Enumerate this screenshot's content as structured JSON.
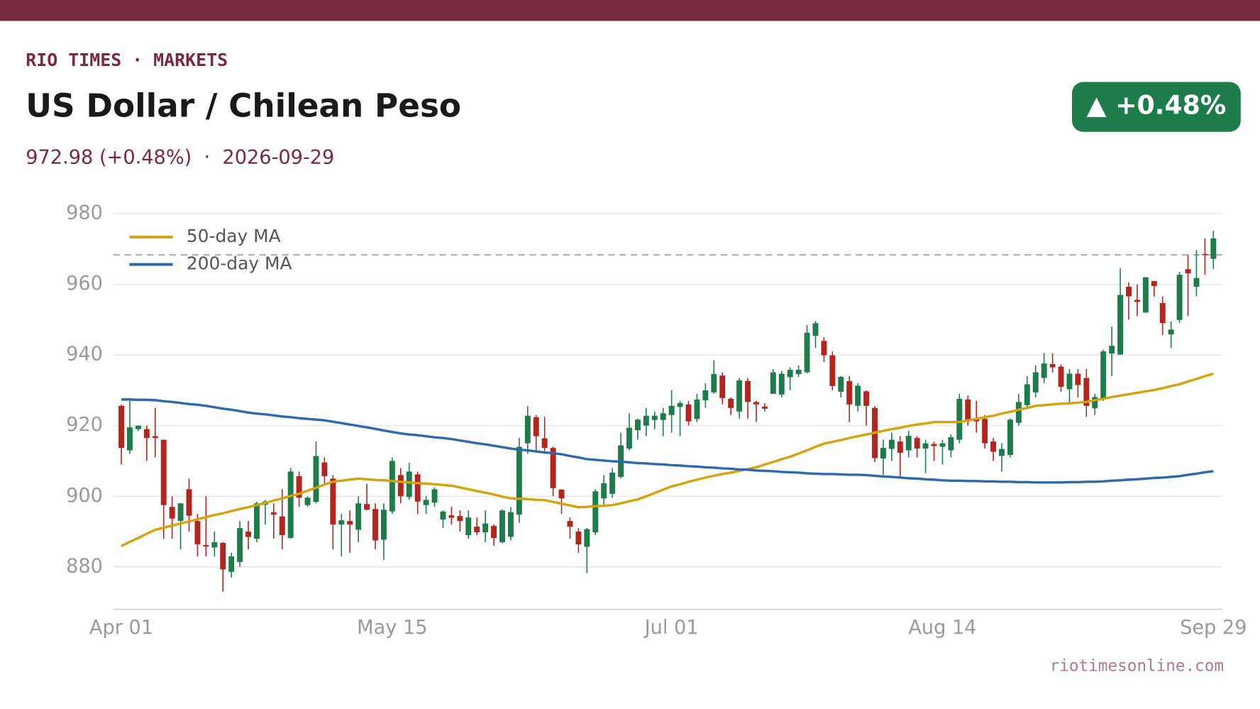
{
  "header": {
    "brand": "RIO TIMES · MARKETS",
    "title": "US Dollar / Chilean Peso",
    "subtitle": "972.98 (+0.48%)  ·  2026-09-29",
    "badge": "▲ +0.48%"
  },
  "footer": "riotimesonline.com",
  "chart_data": {
    "type": "candlestick",
    "categories": [
      "Apr 01",
      null,
      null,
      null,
      null,
      null,
      null,
      null,
      null,
      null,
      null,
      null,
      null,
      null,
      null,
      null,
      null,
      null,
      null,
      null,
      null,
      null,
      null,
      null,
      null,
      null,
      null,
      null,
      null,
      null,
      null,
      null,
      "May 15",
      null,
      null,
      null,
      null,
      null,
      null,
      null,
      null,
      null,
      null,
      null,
      null,
      null,
      null,
      null,
      null,
      null,
      null,
      null,
      null,
      null,
      null,
      null,
      null,
      null,
      null,
      null,
      null,
      null,
      null,
      null,
      null,
      "Jul 01",
      null,
      null,
      null,
      null,
      null,
      null,
      null,
      null,
      null,
      null,
      null,
      null,
      null,
      null,
      null,
      null,
      null,
      null,
      null,
      null,
      null,
      null,
      null,
      null,
      null,
      null,
      null,
      null,
      null,
      null,
      null,
      "Aug 14",
      null,
      null,
      null,
      null,
      null,
      null,
      null,
      null,
      null,
      null,
      null,
      null,
      null,
      null,
      null,
      null,
      null,
      null,
      null,
      null,
      null,
      null,
      null,
      null,
      null,
      null,
      null,
      null,
      null,
      null,
      null,
      "Sep 29"
    ],
    "open": [
      925.6,
      913,
      919,
      919,
      917,
      916,
      897,
      893,
      902,
      893,
      886.2,
      885.5,
      886.8,
      878.6,
      881.4,
      890,
      888,
      897.6,
      895.5,
      894.3,
      888.2,
      905.7,
      897.5,
      898.4,
      909.6,
      905,
      892,
      893,
      890.5,
      897.8,
      896.4,
      887.7,
      895.7,
      906,
      899.8,
      906.2,
      897.5,
      898.2,
      893.4,
      894.6,
      894.4,
      889,
      891.4,
      889.8,
      891.6,
      887,
      888.5,
      894.8,
      915,
      922.4,
      916.4,
      913.7,
      901.9,
      893,
      890,
      885.7,
      889.8,
      899.4,
      900.7,
      905.5,
      913.5,
      918.7,
      920,
      921.6,
      921.6,
      923,
      925.3,
      926,
      921.9,
      927.2,
      929.4,
      934.2,
      927.6,
      924,
      932.6,
      926.7,
      925.4,
      929,
      928.8,
      933.7,
      934.6,
      935.1,
      945.4,
      944,
      939.9,
      929.6,
      932.6,
      925.6,
      929.7,
      925,
      910.7,
      913.4,
      915.5,
      913,
      916.5,
      913.5,
      914.8,
      914,
      913,
      916,
      927.4,
      921.9,
      921.9,
      915.5,
      911.4,
      911.7,
      920.8,
      925.8,
      929.4,
      933.5,
      937.4,
      936.7,
      930.3,
      934.7,
      933.5,
      924.9,
      927.4,
      940.4,
      940.1,
      959.3,
      955.6,
      952,
      960.9,
      954.7,
      945.8,
      949.9,
      964.3,
      959.3,
      968.6,
      967.2
    ],
    "high": [
      926,
      927,
      920,
      920,
      925,
      916,
      900,
      898,
      905,
      895,
      900,
      890,
      887,
      884,
      893,
      893,
      898.5,
      899,
      898,
      902,
      908,
      907,
      900,
      915.5,
      911,
      906,
      895,
      896,
      900,
      903.5,
      898,
      898,
      911,
      908,
      909.5,
      907,
      900,
      902.5,
      896,
      897,
      896,
      896,
      894,
      896,
      892,
      896.3,
      897,
      916.5,
      925.5,
      923,
      922.5,
      914,
      902,
      894,
      891,
      891,
      902,
      906,
      908,
      918,
      923.5,
      922,
      925,
      924,
      925,
      930,
      927,
      927,
      929,
      932,
      938.5,
      935,
      928,
      933.5,
      933.5,
      927,
      926.4,
      936,
      935.5,
      936.5,
      937,
      948.5,
      949.6,
      945,
      941,
      934,
      934,
      932,
      930,
      925.5,
      916,
      918,
      917,
      918.5,
      917,
      916,
      915.5,
      916,
      917.5,
      929,
      928.5,
      927,
      923,
      916.5,
      915,
      922,
      929,
      934,
      937,
      940.5,
      940.5,
      937.3,
      936,
      936,
      936,
      929,
      941.5,
      948,
      964.5,
      960.5,
      960,
      962,
      961,
      956.6,
      949.5,
      963.5,
      968.3,
      969.7,
      973,
      975.2
    ],
    "low": [
      909,
      912,
      918.5,
      910,
      911,
      888,
      888,
      885,
      890,
      883,
      883,
      883,
      873,
      877,
      880,
      885,
      887,
      892,
      888,
      885,
      888,
      897,
      897,
      898,
      903,
      885,
      883,
      884,
      887,
      896,
      885,
      882,
      895,
      898,
      899,
      895,
      895,
      897,
      891,
      892,
      890,
      888,
      889,
      887,
      886,
      886.7,
      887.5,
      892.5,
      912,
      913,
      912,
      900,
      895,
      888,
      884,
      878.3,
      889,
      897,
      899.6,
      905,
      913,
      916,
      917,
      919,
      917,
      918,
      917,
      920,
      921,
      925,
      929,
      926,
      923,
      922,
      922,
      921,
      924,
      929,
      928,
      930,
      933.8,
      934.8,
      942,
      938,
      930,
      928,
      921,
      924,
      920,
      909.7,
      906,
      910,
      905,
      911,
      911,
      906.5,
      910,
      909,
      911,
      915,
      920,
      918,
      913.5,
      910,
      907,
      911,
      920,
      925,
      928,
      932,
      935,
      929.5,
      926,
      928,
      922.5,
      923,
      927,
      934,
      940,
      950,
      951,
      952,
      956.5,
      945.6,
      942,
      949,
      951,
      956.6,
      962.7,
      964.3
    ],
    "close": [
      913.7,
      919.5,
      920,
      916.5,
      916.5,
      897.5,
      893.7,
      898,
      894.5,
      886.4,
      885.8,
      887,
      879.3,
      883,
      891,
      888.5,
      898,
      898.5,
      894.8,
      889,
      907,
      899.6,
      899.6,
      911.4,
      905.7,
      892,
      893.2,
      892,
      898,
      896.2,
      887.5,
      896.2,
      910,
      900,
      907,
      898.5,
      899,
      902,
      895.7,
      893.9,
      893,
      894,
      889.8,
      892.3,
      888.2,
      896,
      895.5,
      914,
      922.8,
      917,
      913.7,
      902.3,
      899.4,
      891.4,
      886.4,
      890.7,
      901.4,
      903.7,
      906.7,
      914.4,
      919.4,
      921.7,
      922.8,
      922.8,
      923.5,
      925.6,
      926.4,
      921.2,
      927.4,
      930,
      934.6,
      927.8,
      925,
      932.8,
      926.7,
      926,
      924.8,
      935.1,
      934.7,
      935.8,
      935.8,
      946.3,
      949,
      939.9,
      931.2,
      933.8,
      926,
      931.3,
      925.6,
      910.8,
      913.7,
      916,
      912.3,
      917.1,
      913.5,
      915,
      914.2,
      915,
      916.7,
      927.6,
      921.2,
      921.2,
      915,
      912.6,
      913.4,
      921.7,
      926.7,
      931.7,
      935.1,
      937.6,
      936.5,
      931,
      934.7,
      931.5,
      925.6,
      928.1,
      941,
      942.6,
      957,
      956.6,
      955,
      962,
      959.5,
      949,
      947.2,
      962.7,
      963.1,
      961.8,
      968.34,
      972.98
    ],
    "up_color": "#1e7b4a",
    "down_color": "#b3261e",
    "series": [
      {
        "name": "50-day MA",
        "color": "#d4a20c",
        "values": [
          885.9,
          887.1,
          888.2,
          889.4,
          890.5,
          891.1,
          891.7,
          892.3,
          892.9,
          893.5,
          894.1,
          894.7,
          895.2,
          895.8,
          896.4,
          896.9,
          897.5,
          898.1,
          898.8,
          899.4,
          900.1,
          900.7,
          901.6,
          902.4,
          903.3,
          904.1,
          904.4,
          904.7,
          905.0,
          904.8,
          904.6,
          904.5,
          904.3,
          904.1,
          903.9,
          903.7,
          903.6,
          903.4,
          903.2,
          903.0,
          902.5,
          902.0,
          901.5,
          901.0,
          900.5,
          899.9,
          899.4,
          899.3,
          899.2,
          899.0,
          898.9,
          898.4,
          897.9,
          897.4,
          896.9,
          897.0,
          897.2,
          897.3,
          897.5,
          898.0,
          898.6,
          899.1,
          900.0,
          900.9,
          901.9,
          902.8,
          903.4,
          904.1,
          904.7,
          905.3,
          905.8,
          906.3,
          906.7,
          907.2,
          907.7,
          908.2,
          909.0,
          909.7,
          910.5,
          911.2,
          912.1,
          913.0,
          914.0,
          914.9,
          915.4,
          915.9,
          916.5,
          917.0,
          917.5,
          918.0,
          918.5,
          919.0,
          919.4,
          919.9,
          920.3,
          920.6,
          921.0,
          921.0,
          921.0,
          921.0,
          921.5,
          921.9,
          922.4,
          922.8,
          923.4,
          923.9,
          924.5,
          925.0,
          925.6,
          925.8,
          926.0,
          926.2,
          926.3,
          926.5,
          926.7,
          927.2,
          927.6,
          928.1,
          928.5,
          928.9,
          929.3,
          929.7,
          930.1,
          930.6,
          931.2,
          931.7,
          932.5,
          933.2,
          934.0,
          934.7
        ]
      },
      {
        "name": "200-day MA",
        "color": "#2c6aab",
        "values": [
          927.4,
          927.4,
          927.3,
          927.3,
          927.2,
          926.9,
          926.7,
          926.4,
          926.1,
          925.9,
          925.6,
          925.2,
          924.8,
          924.5,
          924.1,
          923.7,
          923.4,
          923.2,
          922.9,
          922.6,
          922.4,
          922.1,
          921.9,
          921.7,
          921.5,
          921.1,
          920.7,
          920.3,
          919.9,
          919.5,
          919.1,
          918.6,
          918.2,
          917.8,
          917.5,
          917.3,
          917.0,
          916.7,
          916.5,
          916.2,
          915.8,
          915.4,
          915.0,
          914.7,
          914.3,
          913.9,
          913.5,
          913.2,
          913.0,
          912.7,
          912.4,
          912.2,
          911.9,
          911.4,
          911.0,
          910.5,
          910.3,
          910.1,
          909.9,
          909.8,
          909.6,
          909.4,
          909.3,
          909.1,
          909.0,
          908.8,
          908.7,
          908.5,
          908.4,
          908.2,
          908.1,
          907.9,
          907.8,
          907.6,
          907.5,
          907.3,
          907.2,
          907.1,
          906.9,
          906.8,
          906.7,
          906.5,
          906.4,
          906.3,
          906.3,
          906.2,
          906.1,
          906.1,
          906.0,
          905.8,
          905.6,
          905.5,
          905.3,
          905.1,
          905.0,
          904.8,
          904.7,
          904.5,
          904.4,
          904.4,
          904.3,
          904.3,
          904.2,
          904.2,
          904.1,
          904.1,
          904.0,
          904.0,
          903.9,
          903.9,
          903.9,
          903.9,
          904.0,
          904.0,
          904.1,
          904.1,
          904.2,
          904.4,
          904.5,
          904.7,
          904.8,
          905.0,
          905.2,
          905.3,
          905.5,
          905.7,
          906.1,
          906.4,
          906.8,
          907.1
        ]
      }
    ],
    "reference_line": 968.34,
    "reference_color": "#aaaaaa",
    "ylim": [
      868,
      982
    ],
    "yticks": [
      880,
      900,
      920,
      940,
      960,
      980
    ],
    "grid": true,
    "legend": "upper left"
  }
}
